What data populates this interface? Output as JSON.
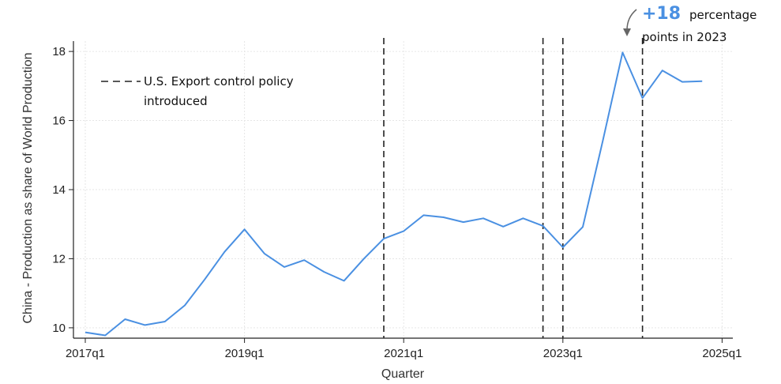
{
  "chart_data": {
    "type": "line",
    "title": "",
    "xlabel": "Quarter",
    "ylabel": "China - Production as share of World Production",
    "ylim": [
      9.7,
      18.3
    ],
    "yticks": [
      10,
      12,
      14,
      16,
      18
    ],
    "xticks": [
      "2017q1",
      "2019q1",
      "2021q1",
      "2023q1",
      "2025q1"
    ],
    "grid": true,
    "colors": {
      "line": "#4a90e2",
      "policy_line": "#222222",
      "highlight": "#4a90e2"
    },
    "series": [
      {
        "x": [
          "2017q1",
          "2017q2",
          "2017q3",
          "2017q4",
          "2018q1",
          "2018q2",
          "2018q3",
          "2018q4",
          "2019q1",
          "2019q2",
          "2019q3",
          "2019q4",
          "2020q1",
          "2020q2",
          "2020q3",
          "2020q4",
          "2021q1",
          "2021q2",
          "2021q3",
          "2021q4",
          "2022q1",
          "2022q2",
          "2022q3",
          "2022q4",
          "2023q1",
          "2023q2",
          "2023q3",
          "2023q4",
          "2024q1",
          "2024q2",
          "2024q3",
          "2024q4"
        ],
        "values": [
          9.87,
          9.78,
          10.25,
          10.08,
          10.18,
          10.65,
          11.4,
          12.2,
          12.85,
          12.15,
          11.76,
          11.96,
          11.62,
          11.36,
          12.0,
          12.58,
          12.8,
          13.26,
          13.2,
          13.06,
          13.17,
          12.93,
          13.17,
          12.95,
          12.33,
          12.92,
          15.4,
          17.97,
          16.65,
          17.45,
          17.12,
          17.14
        ]
      }
    ],
    "policy_lines_x": [
      "2020q4",
      "2022q4",
      "2023q1",
      "2024q1"
    ],
    "legend": {
      "label_line1": "U.S. Export control policy",
      "label_line2": "introduced",
      "position": "top-left"
    },
    "annotation": {
      "big": "+18",
      "text1": "percentage",
      "text2": "points in 2023"
    }
  }
}
